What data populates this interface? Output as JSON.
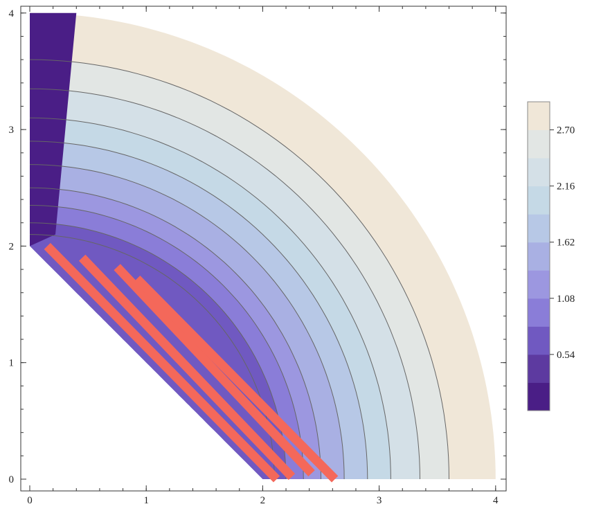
{
  "chart_data": {
    "type": "heatmap",
    "subtype": "contour",
    "title": "",
    "xlabel": "",
    "ylabel": "",
    "xlim": [
      0,
      4
    ],
    "ylim": [
      0,
      4
    ],
    "x_ticks": [
      {
        "value": 0,
        "label": "0"
      },
      {
        "value": 1,
        "label": "1"
      },
      {
        "value": 2,
        "label": "2"
      },
      {
        "value": 3,
        "label": "3"
      },
      {
        "value": 4,
        "label": "4"
      }
    ],
    "y_ticks": [
      {
        "value": 0,
        "label": "0"
      },
      {
        "value": 1,
        "label": "1"
      },
      {
        "value": 2,
        "label": "2"
      },
      {
        "value": 3,
        "label": "3"
      },
      {
        "value": 4,
        "label": "4"
      }
    ],
    "domain": {
      "shape": "annular sector",
      "inner_radius_region": "line from (0,2) to (2,0)",
      "outer_radius": 4,
      "angle_range_deg": [
        0,
        90
      ]
    },
    "contour_levels": [
      0.27,
      0.54,
      0.81,
      1.08,
      1.35,
      1.62,
      1.89,
      2.16,
      2.43,
      2.7,
      2.97
    ],
    "contour_radii_along_x_axis": [
      2.1,
      2.2,
      2.35,
      2.5,
      2.7,
      2.9,
      3.1,
      3.35,
      3.6
    ],
    "legend": {
      "placement": "right",
      "min": 0,
      "max": 2.97,
      "tick_labels": [
        "0.54",
        "1.08",
        "1.62",
        "2.16",
        "2.70"
      ],
      "tick_values": [
        0.54,
        1.08,
        1.62,
        2.16,
        2.7
      ],
      "colors": [
        "#4a1e86",
        "#5d3aa0",
        "#7059c1",
        "#8a7dd8",
        "#9c97e0",
        "#a9b0e3",
        "#b7c8e6",
        "#c5d9e6",
        "#d4e0e7",
        "#e2e6e4",
        "#f0e7d8"
      ]
    },
    "annotations": [
      {
        "type": "line",
        "color": "#f4685a",
        "from": [
          0.15,
          2.0
        ],
        "to": [
          2.12,
          0.0
        ]
      },
      {
        "type": "line",
        "color": "#f4685a",
        "from": [
          0.45,
          1.9
        ],
        "to": [
          2.25,
          0.02
        ]
      },
      {
        "type": "line",
        "color": "#f4685a",
        "from": [
          0.75,
          1.82
        ],
        "to": [
          2.42,
          0.05
        ]
      },
      {
        "type": "line",
        "color": "#f4685a",
        "from": [
          0.92,
          1.72
        ],
        "to": [
          2.62,
          0.0
        ]
      }
    ],
    "grid": false,
    "frame": true
  }
}
